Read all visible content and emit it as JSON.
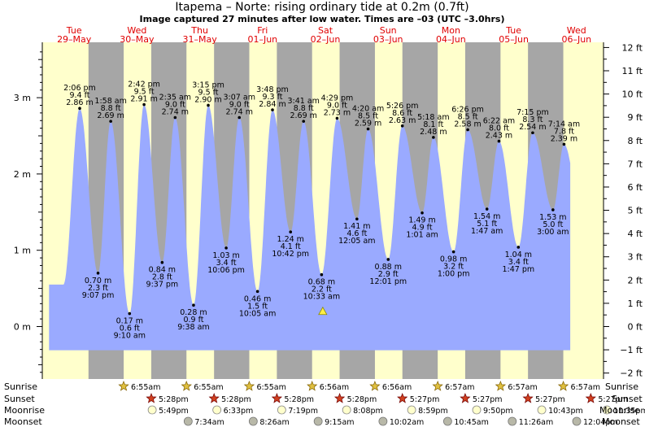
{
  "title": "Itapema – Norte: rising  ordinary tide at 0.2m (0.7ft)",
  "subtitle": "Image captured 27 minutes after low water. Times are –03 (UTC –3.0hrs)",
  "colors": {
    "day_bg": "#ffffcc",
    "night_bg": "#a6a6a6",
    "water": "#9aaaff",
    "day_label": "#e00000"
  },
  "chart_data": {
    "type": "area",
    "x_axis": "time (days, 29-May to 06-Jun)",
    "left_axis": {
      "unit": "m",
      "ticks": [
        "0 m",
        "1 m",
        "2 m",
        "3 m"
      ]
    },
    "right_axis": {
      "unit": "ft",
      "ticks": [
        "−2 ft",
        "−1 ft",
        "0 ft",
        "1 ft",
        "2 ft",
        "3 ft",
        "4 ft",
        "5 ft",
        "6 ft",
        "7 ft",
        "8 ft",
        "9 ft",
        "10 ft",
        "11 ft",
        "12 ft"
      ]
    },
    "ylim_m": [
      -0.61,
      3.66
    ],
    "days": [
      {
        "dow": "Tue",
        "date": "29–May"
      },
      {
        "dow": "Wed",
        "date": "30–May"
      },
      {
        "dow": "Thu",
        "date": "31–May"
      },
      {
        "dow": "Fri",
        "date": "01–Jun"
      },
      {
        "dow": "Sat",
        "date": "02–Jun"
      },
      {
        "dow": "Sun",
        "date": "03–Jun"
      },
      {
        "dow": "Mon",
        "date": "04–Jun"
      },
      {
        "dow": "Tue",
        "date": "05–Jun"
      },
      {
        "dow": "Wed",
        "date": "06–Jun"
      }
    ],
    "tides": [
      {
        "time": "2:06 pm",
        "ft": "9.4 ft",
        "m": "2.86 m",
        "d": 0.588,
        "v": 2.86,
        "type": "high"
      },
      {
        "time": "9:07 pm",
        "ft": "2.3 ft",
        "m": "0.70 m",
        "d": 0.88,
        "v": 0.7,
        "type": "low"
      },
      {
        "time": "1:58 am",
        "ft": "8.8 ft",
        "m": "2.69 m",
        "d": 1.082,
        "v": 2.69,
        "type": "high"
      },
      {
        "time": "9:10 am",
        "ft": "0.6 ft",
        "m": "0.17 m",
        "d": 1.382,
        "v": 0.17,
        "type": "low"
      },
      {
        "time": "2:42 pm",
        "ft": "9.5 ft",
        "m": "2.91 m",
        "d": 1.613,
        "v": 2.91,
        "type": "high"
      },
      {
        "time": "9:37 pm",
        "ft": "2.8 ft",
        "m": "0.84 m",
        "d": 1.901,
        "v": 0.84,
        "type": "low"
      },
      {
        "time": "2:35 am",
        "ft": "9.0 ft",
        "m": "2.74 m",
        "d": 2.108,
        "v": 2.74,
        "type": "high"
      },
      {
        "time": "9:38 am",
        "ft": "0.9 ft",
        "m": "0.28 m",
        "d": 2.401,
        "v": 0.28,
        "type": "low"
      },
      {
        "time": "3:15 pm",
        "ft": "9.5 ft",
        "m": "2.90 m",
        "d": 2.635,
        "v": 2.9,
        "type": "high"
      },
      {
        "time": "10:06 pm",
        "ft": "3.4 ft",
        "m": "1.03 m",
        "d": 2.921,
        "v": 1.03,
        "type": "low"
      },
      {
        "time": "3:07 am",
        "ft": "9.0 ft",
        "m": "2.74 m",
        "d": 3.13,
        "v": 2.74,
        "type": "high"
      },
      {
        "time": "10:05 am",
        "ft": "1.5 ft",
        "m": "0.46 m",
        "d": 3.42,
        "v": 0.46,
        "type": "low"
      },
      {
        "time": "3:48 pm",
        "ft": "9.3 ft",
        "m": "2.84 m",
        "d": 3.658,
        "v": 2.84,
        "type": "high"
      },
      {
        "time": "10:42 pm",
        "ft": "4.1 ft",
        "m": "1.24 m",
        "d": 3.946,
        "v": 1.24,
        "type": "low"
      },
      {
        "time": "3:41 am",
        "ft": "8.8 ft",
        "m": "2.69 m",
        "d": 4.153,
        "v": 2.69,
        "type": "high"
      },
      {
        "time": "10:33 am",
        "ft": "2.2 ft",
        "m": "0.68 m",
        "d": 4.44,
        "v": 0.68,
        "type": "low"
      },
      {
        "time": "4:29 pm",
        "ft": "9.0 ft",
        "m": "2.73 m",
        "d": 4.687,
        "v": 2.73,
        "type": "high"
      },
      {
        "time": "12:05 am",
        "ft": "4.6 ft",
        "m": "1.41 m",
        "d": 5.003,
        "v": 1.41,
        "type": "low"
      },
      {
        "time": "4:20 am",
        "ft": "8.5 ft",
        "m": "2.59 m",
        "d": 5.181,
        "v": 2.59,
        "type": "high"
      },
      {
        "time": "12:01 pm",
        "ft": "2.9 ft",
        "m": "0.88 m",
        "d": 5.501,
        "v": 0.88,
        "type": "low"
      },
      {
        "time": "5:26 pm",
        "ft": "8.6 ft",
        "m": "2.63 m",
        "d": 5.726,
        "v": 2.63,
        "type": "high"
      },
      {
        "time": "1:01 am",
        "ft": "4.9 ft",
        "m": "1.49 m",
        "d": 6.042,
        "v": 1.49,
        "type": "low"
      },
      {
        "time": "5:18 am",
        "ft": "8.1 ft",
        "m": "2.48 m",
        "d": 6.221,
        "v": 2.48,
        "type": "high"
      },
      {
        "time": "1:00 pm",
        "ft": "3.2 ft",
        "m": "0.98 m",
        "d": 6.542,
        "v": 0.98,
        "type": "low"
      },
      {
        "time": "6:26 pm",
        "ft": "8.5 ft",
        "m": "2.58 m",
        "d": 6.768,
        "v": 2.58,
        "type": "high"
      },
      {
        "time": "1:47 am",
        "ft": "5.1 ft",
        "m": "1.54 m",
        "d": 7.074,
        "v": 1.54,
        "type": "low"
      },
      {
        "time": "6:22 am",
        "ft": "8.0 ft",
        "m": "2.43 m",
        "d": 7.265,
        "v": 2.43,
        "type": "high"
      },
      {
        "time": "1:47 pm",
        "ft": "3.4 ft",
        "m": "1.04 m",
        "d": 7.574,
        "v": 1.04,
        "type": "low"
      },
      {
        "time": "7:15 pm",
        "ft": "8.3 ft",
        "m": "2.54 m",
        "d": 7.802,
        "v": 2.54,
        "type": "high"
      },
      {
        "time": "3:00 am",
        "ft": "5.0 ft",
        "m": "1.53 m",
        "d": 8.125,
        "v": 1.53,
        "type": "low"
      },
      {
        "time": "7:14 am",
        "ft": "7.8 ft",
        "m": "2.39 m",
        "d": 8.301,
        "v": 2.39,
        "type": "high"
      }
    ],
    "sunrise": [
      "6:55am",
      "6:55am",
      "6:55am",
      "6:56am",
      "6:56am",
      "6:57am",
      "6:57am",
      "6:57am"
    ],
    "sunset": [
      "5:28pm",
      "5:28pm",
      "5:28pm",
      "5:28pm",
      "5:27pm",
      "5:27pm",
      "5:27pm",
      "5:27pm"
    ],
    "moonrise": [
      "5:49pm",
      "6:33pm",
      "7:19pm",
      "8:08pm",
      "8:59pm",
      "9:50pm",
      "10:43pm",
      "11:35pm"
    ],
    "moonset": [
      "7:34am",
      "8:26am",
      "9:15am",
      "10:02am",
      "10:45am",
      "11:26am",
      "12:04pm"
    ],
    "current_marker": {
      "d": 4.459,
      "v": 0.2
    }
  },
  "rows": {
    "sunrise": "Sunrise",
    "sunset": "Sunset",
    "moonrise": "Moonrise",
    "moonset": "Moonset"
  }
}
